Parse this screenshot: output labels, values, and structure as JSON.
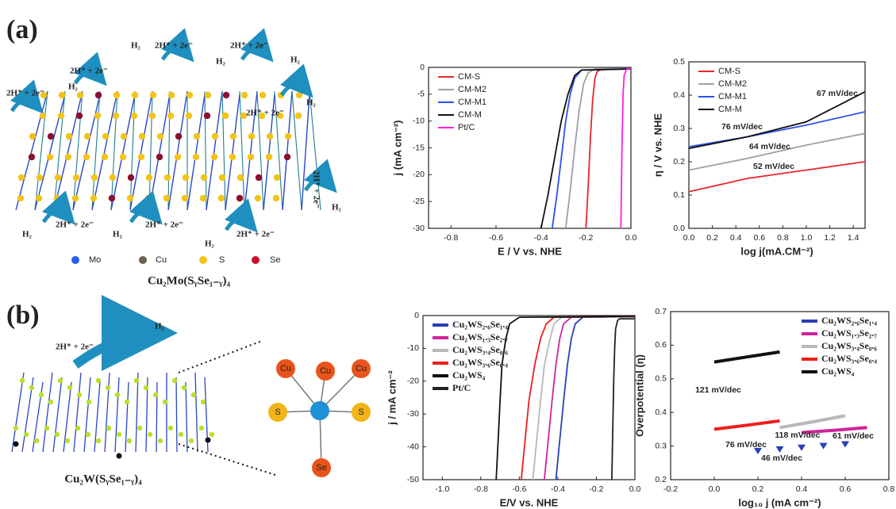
{
  "panels": {
    "a": {
      "label": "(a)",
      "reaction": "2H⁺ + 2e⁻",
      "product": "H₂",
      "legend": [
        "Mo",
        "Cu",
        "S",
        "Se"
      ],
      "formula": "Cu₂Mo(SᵧSe₁₋ᵧ)₄"
    },
    "b": {
      "label": "(b)",
      "reaction": "2H⁺ + 2e⁻",
      "product": "H₂",
      "atoms": [
        "Cu",
        "Se",
        "S"
      ],
      "formula": "Cu₂W(SᵧSe₁₋ᵧ)₄"
    }
  },
  "chart_data": [
    {
      "type": "line",
      "ylabel": "j (mA cm⁻²)",
      "xlabel": "E / V vs. NHE",
      "xlim": [
        -0.9,
        0.0
      ],
      "xticks": [
        -0.8,
        -0.6,
        -0.4,
        -0.2,
        {
          "value": 0,
          "label": "0.0"
        }
      ],
      "ylim": [
        -30,
        0
      ],
      "yticks": [
        0,
        -5,
        -10,
        -15,
        -20,
        -25,
        -30
      ],
      "legend": "upper left",
      "legend_text_colored": false,
      "series": [
        {
          "name": "CM-S",
          "color": "#e8262b",
          "x": [
            -0.2,
            -0.19,
            -0.18,
            -0.17,
            -0.16,
            -0.15,
            -0.13,
            0.0
          ],
          "values": [
            -30,
            -22,
            -13,
            -6,
            -2,
            -0.8,
            -0.3,
            -0.2
          ]
        },
        {
          "name": "CM-M2",
          "color": "#a0a0a0",
          "x": [
            -0.29,
            -0.27,
            -0.25,
            -0.23,
            -0.21,
            -0.19,
            -0.16,
            0.0
          ],
          "values": [
            -30,
            -23,
            -15,
            -8,
            -3,
            -1,
            -0.3,
            -0.2
          ]
        },
        {
          "name": "CM-M1",
          "color": "#2a50f0",
          "x": [
            -0.35,
            -0.33,
            -0.31,
            -0.29,
            -0.27,
            -0.25,
            -0.22,
            0.0
          ],
          "values": [
            -30,
            -24,
            -17,
            -10,
            -5,
            -2,
            -0.5,
            -0.3
          ]
        },
        {
          "name": "CM-M",
          "color": "#111111",
          "x": [
            -0.4,
            -0.37,
            -0.34,
            -0.31,
            -0.28,
            -0.25,
            -0.22,
            0.0
          ],
          "values": [
            -30,
            -24,
            -17,
            -10,
            -5,
            -1.5,
            -0.5,
            -0.3
          ]
        },
        {
          "name": "Pt/C",
          "color": "#ff1fe0",
          "x": [
            -0.045,
            -0.04,
            -0.035,
            -0.03,
            -0.02,
            0.0
          ],
          "values": [
            -30,
            -15,
            -5,
            -1.5,
            -0.4,
            -0.2
          ]
        }
      ]
    },
    {
      "type": "line",
      "ylabel": "η / V vs. NHE",
      "xlabel": "log j(mA.CM⁻²)",
      "xlim": [
        0,
        1.5
      ],
      "xticks": [
        {
          "value": 0,
          "label": "0.0"
        },
        0.2,
        0.4,
        0.6,
        0.8,
        {
          "value": 1,
          "label": "1.0"
        },
        1.2,
        1.4
      ],
      "ylim": [
        0,
        0.5
      ],
      "yticks": [
        {
          "value": 0,
          "label": "0.0"
        },
        0.1,
        0.2,
        0.3,
        0.4,
        0.5
      ],
      "legend": "upper left",
      "legend_text_colored": false,
      "annotations": [
        "76 mV/dec",
        "67 mV/dec",
        "64 mV/dec",
        "52 mV/dec"
      ],
      "series": [
        {
          "name": "CM-S",
          "color": "#e8262b",
          "x": [
            0,
            0.5,
            1.0,
            1.5
          ],
          "values": [
            0.11,
            0.15,
            0.175,
            0.2
          ]
        },
        {
          "name": "CM-M2",
          "color": "#a0a0a0",
          "x": [
            0,
            0.5,
            1.0,
            1.5
          ],
          "values": [
            0.175,
            0.21,
            0.25,
            0.285
          ]
        },
        {
          "name": "CM-M1",
          "color": "#2a50f0",
          "x": [
            0,
            0.5,
            1.0,
            1.5
          ],
          "values": [
            0.245,
            0.275,
            0.31,
            0.35
          ]
        },
        {
          "name": "CM-M",
          "color": "#111111",
          "x": [
            0,
            0.5,
            1.0,
            1.5
          ],
          "values": [
            0.24,
            0.275,
            0.32,
            0.41
          ]
        }
      ]
    },
    {
      "type": "line",
      "ylabel": "j / mA cm⁻²",
      "xlabel": "E/V vs. NHE",
      "xlim": [
        -1.1,
        0.0
      ],
      "xticks": [
        {
          "value": -1,
          "label": "-1.0"
        },
        -0.8,
        -0.6,
        -0.4,
        -0.2,
        {
          "value": 0,
          "label": "0.0"
        }
      ],
      "ylim": [
        -50,
        0
      ],
      "yticks": [
        0,
        -10,
        -20,
        -30,
        -40,
        -50
      ],
      "legend": "upper left",
      "legend_text_colored": true,
      "series": [
        {
          "name": "Cu₂WS₂.₆Se₁.₄",
          "color": "#2a3fb8",
          "x": [
            -0.41,
            -0.39,
            -0.37,
            -0.35,
            -0.33,
            -0.31,
            -0.27,
            0.0
          ],
          "values": [
            -50,
            -38,
            -26,
            -15,
            -7,
            -2.5,
            -0.5,
            -0.3
          ]
        },
        {
          "name": "Cu₂WS₁.₃Se₂.₇",
          "color": "#d0239a",
          "x": [
            -0.47,
            -0.45,
            -0.43,
            -0.41,
            -0.39,
            -0.37,
            -0.33,
            0.0
          ],
          "values": [
            -50,
            -38,
            -26,
            -15,
            -7,
            -2.5,
            -0.5,
            -0.3
          ]
        },
        {
          "name": "Cu₂WS₃.₄Se₀.₆",
          "color": "#b8b8b8",
          "x": [
            -0.53,
            -0.51,
            -0.49,
            -0.47,
            -0.44,
            -0.42,
            -0.38,
            0.0
          ],
          "values": [
            -50,
            -38,
            -26,
            -15,
            -7,
            -2.5,
            -0.5,
            -0.3
          ]
        },
        {
          "name": "Cu₂WS₃.₆Se₀.₄",
          "color": "#f01c1c",
          "x": [
            -0.59,
            -0.57,
            -0.55,
            -0.52,
            -0.49,
            -0.46,
            -0.42,
            0.0
          ],
          "values": [
            -50,
            -38,
            -26,
            -15,
            -7,
            -2.5,
            -0.5,
            -0.3
          ]
        },
        {
          "name": "Cu₂WS₄",
          "color": "#111111",
          "x": [
            -0.72,
            -0.71,
            -0.7,
            -0.69,
            -0.67,
            -0.65,
            -0.6,
            0.0
          ],
          "values": [
            -50,
            -38,
            -26,
            -15,
            -7,
            -2.5,
            -0.5,
            -0.3
          ]
        },
        {
          "name": "Pt/C",
          "color": "#222222",
          "x": [
            -0.12,
            -0.115,
            -0.11,
            -0.105,
            -0.1,
            -0.09,
            -0.08,
            0.0
          ],
          "values": [
            -50,
            -35,
            -20,
            -10,
            -4,
            -1.5,
            -1,
            -1
          ]
        }
      ]
    },
    {
      "type": "line",
      "ylabel": "Overpotential (η)",
      "xlabel": "log₁₀ j (mA cm⁻²)",
      "xlim": [
        -0.2,
        0.8
      ],
      "xticks": [
        -0.2,
        {
          "value": 0,
          "label": "0.0"
        },
        0.2,
        0.4,
        0.6,
        0.8
      ],
      "ylim": [
        0.2,
        0.7
      ],
      "yticks": [
        0.2,
        0.3,
        0.4,
        0.5,
        0.6,
        0.7
      ],
      "legend": "upper right",
      "legend_text_colored": true,
      "annotations": [
        "121 mV/dec",
        "76 mV/dec",
        "118 mV/dec",
        "61 mV/dec",
        "46 mV/dec"
      ],
      "series": [
        {
          "name": "Cu₂WS₂.₆Se₁.₄",
          "color": "#2a3fb8",
          "marker": "triangle",
          "x": [
            0.2,
            0.3,
            0.4,
            0.5,
            0.6
          ],
          "values": [
            0.285,
            0.29,
            0.295,
            0.3,
            0.305
          ]
        },
        {
          "name": "Cu₂WS₁.₃Se₂.₇",
          "color": "#d0239a",
          "x": [
            0.4,
            0.55,
            0.7
          ],
          "values": [
            0.34,
            0.347,
            0.355
          ]
        },
        {
          "name": "Cu₂WS₃.₄Se₀.₆",
          "color": "#b8b8b8",
          "x": [
            0.3,
            0.45,
            0.6
          ],
          "values": [
            0.355,
            0.372,
            0.39
          ]
        },
        {
          "name": "Cu₂WS₃.₆Se₀.₄",
          "color": "#f01c1c",
          "x": [
            0,
            0.15,
            0.3
          ],
          "values": [
            0.35,
            0.362,
            0.375
          ]
        },
        {
          "name": "Cu₂WS₄",
          "color": "#111111",
          "x": [
            0,
            0.15,
            0.3
          ],
          "values": [
            0.55,
            0.565,
            0.58
          ]
        }
      ]
    }
  ]
}
